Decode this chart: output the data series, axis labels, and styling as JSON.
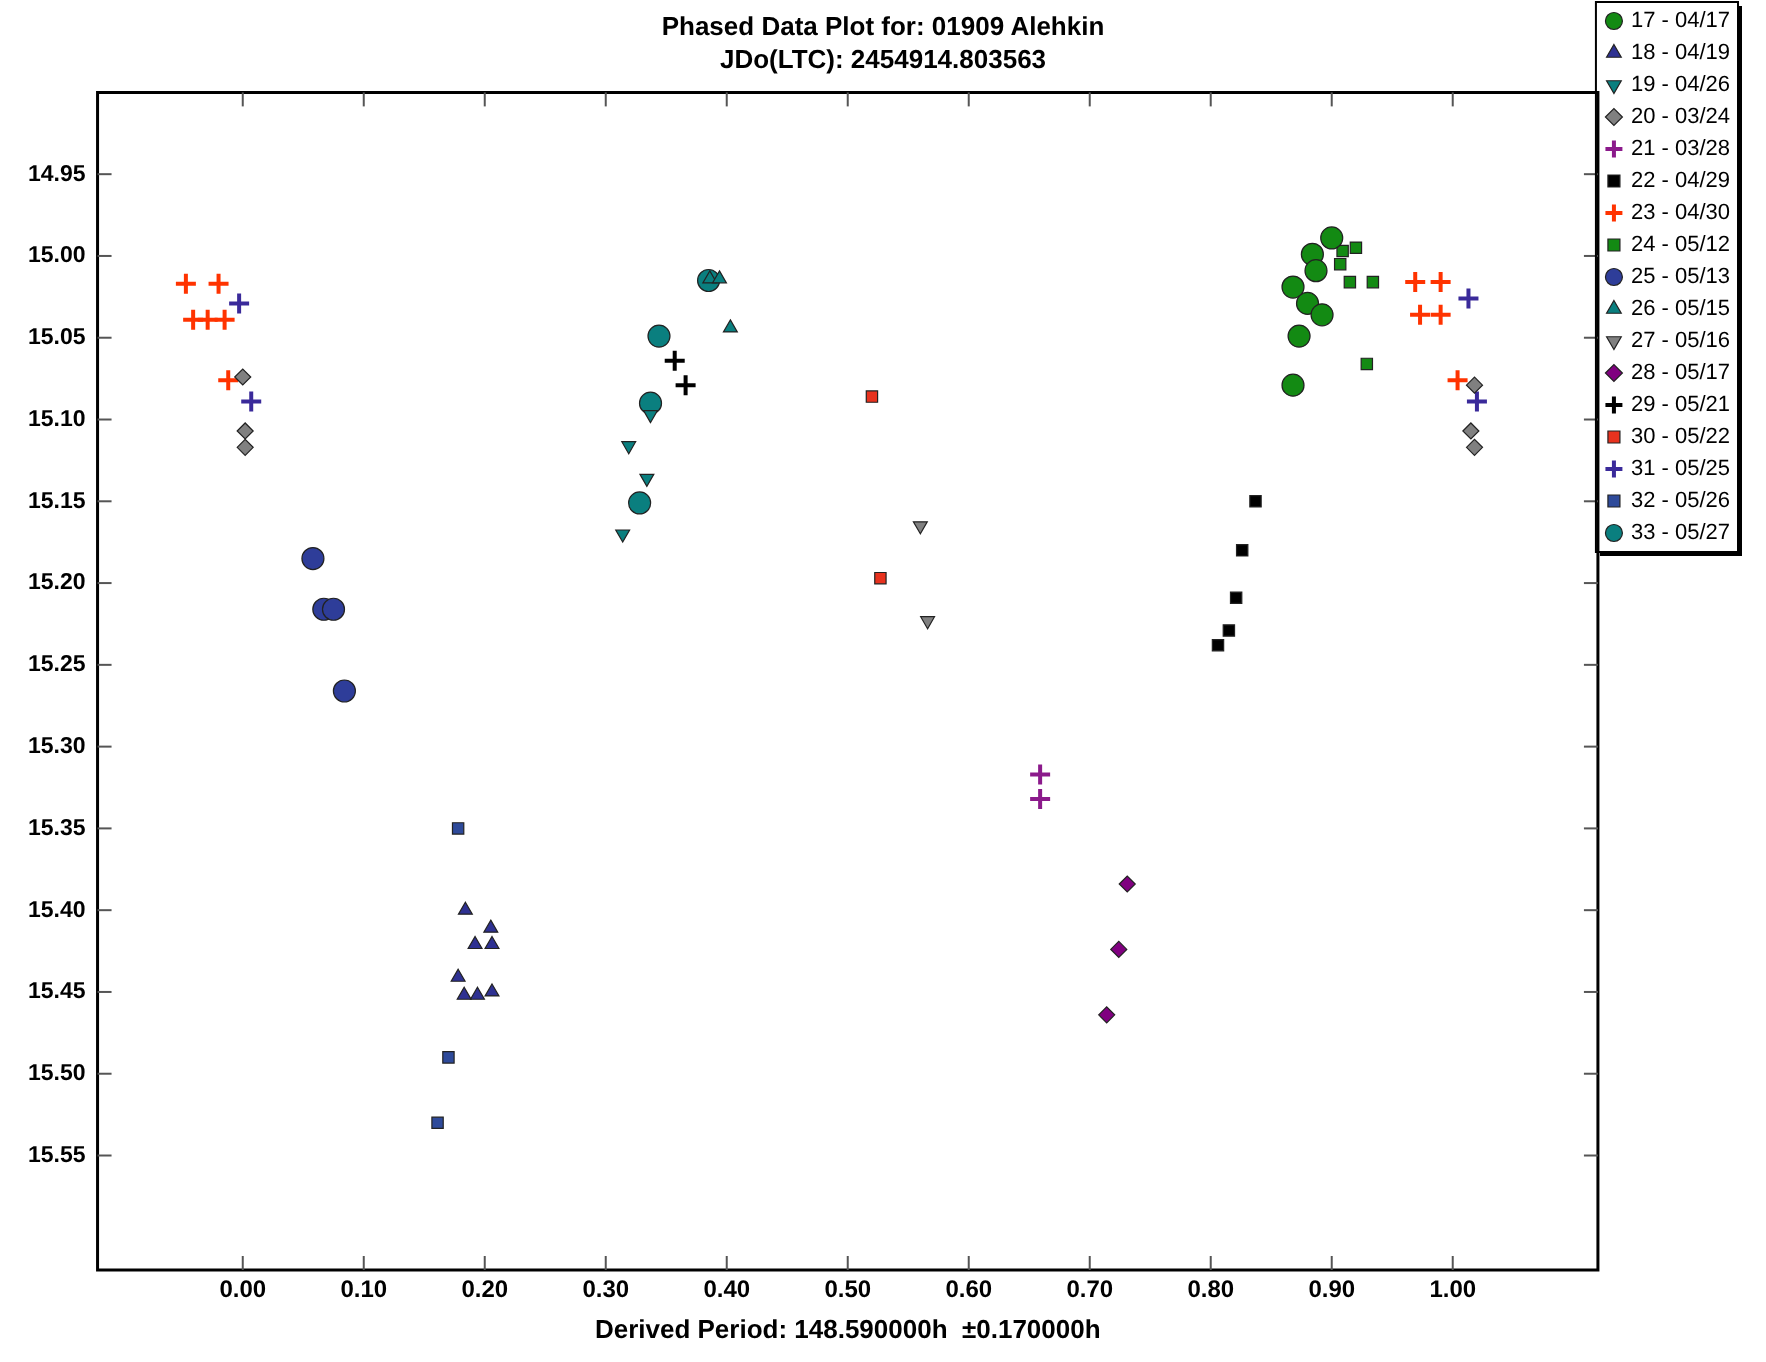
{
  "chart_data": {
    "type": "scatter",
    "title": "Phased Data Plot for: 01909 Alehkin",
    "subtitle": "JDo(LTC): 2454914.803563",
    "xlabel": "Derived Period: 148.590000h  ±0.170000h",
    "xlim": [
      -0.12,
      1.12
    ],
    "ylim": [
      15.62,
      14.9
    ],
    "xticks": [
      {
        "value": 0,
        "label": "0.00"
      },
      {
        "value": 0.1,
        "label": "0.10"
      },
      {
        "value": 0.2,
        "label": "0.20"
      },
      {
        "value": 0.3,
        "label": "0.30"
      },
      {
        "value": 0.4,
        "label": "0.40"
      },
      {
        "value": 0.5,
        "label": "0.50"
      },
      {
        "value": 0.6,
        "label": "0.60"
      },
      {
        "value": 0.7,
        "label": "0.70"
      },
      {
        "value": 0.8,
        "label": "0.80"
      },
      {
        "value": 0.9,
        "label": "0.90"
      },
      {
        "value": 1,
        "label": "1.00"
      }
    ],
    "yticks": [
      {
        "value": 14.95,
        "label": "14.95"
      },
      {
        "value": 15,
        "label": "15.00"
      },
      {
        "value": 15.05,
        "label": "15.05"
      },
      {
        "value": 15.1,
        "label": "15.10"
      },
      {
        "value": 15.15,
        "label": "15.15"
      },
      {
        "value": 15.2,
        "label": "15.20"
      },
      {
        "value": 15.25,
        "label": "15.25"
      },
      {
        "value": 15.3,
        "label": "15.30"
      },
      {
        "value": 15.35,
        "label": "15.35"
      },
      {
        "value": 15.4,
        "label": "15.40"
      },
      {
        "value": 15.45,
        "label": "15.45"
      },
      {
        "value": 15.5,
        "label": "15.50"
      },
      {
        "value": 15.55,
        "label": "15.55"
      }
    ],
    "grid": false,
    "legend": "right",
    "series": [
      {
        "name": "17 - 04/17",
        "color": "#138a13",
        "marker": "circle",
        "x": [
          0.9,
          0.884,
          0.887,
          0.868,
          0.88,
          0.892,
          0.873,
          0.868
        ],
        "values": [
          14.989,
          14.999,
          15.009,
          15.019,
          15.029,
          15.036,
          15.049,
          15.079
        ]
      },
      {
        "name": "18 - 04/19",
        "color": "#2e3192",
        "marker": "triangle",
        "x": [
          0.184,
          0.205,
          0.192,
          0.206,
          0.178,
          0.183,
          0.194,
          0.206
        ],
        "values": [
          15.4,
          15.411,
          15.421,
          15.421,
          15.441,
          15.452,
          15.452,
          15.45
        ]
      },
      {
        "name": "19 - 04/26",
        "color": "#0a7f7f",
        "marker": "triangle_down",
        "x": [
          0.337,
          0.319,
          0.334,
          0.314
        ],
        "values": [
          15.097,
          15.116,
          15.136,
          15.17
        ]
      },
      {
        "name": "20 - 03/24",
        "color": "#808080",
        "marker": "diamond",
        "x": [
          0.0,
          0.002,
          0.002,
          1.018,
          1.015,
          1.018
        ],
        "values": [
          15.074,
          15.107,
          15.117,
          15.079,
          15.107,
          15.117
        ]
      },
      {
        "name": "21 - 03/28",
        "color": "#8b1a8b",
        "marker": "cross",
        "x": [
          0.659,
          0.659
        ],
        "values": [
          15.317,
          15.332
        ]
      },
      {
        "name": "22 - 04/29",
        "color": "#000000",
        "marker": "square",
        "x": [
          0.837,
          0.826,
          0.821,
          0.815,
          0.806
        ],
        "values": [
          15.15,
          15.18,
          15.209,
          15.229,
          15.238
        ]
      },
      {
        "name": "23 - 04/30",
        "color": "#ff3300",
        "marker": "cross",
        "x": [
          -0.047,
          -0.02,
          -0.041,
          -0.029,
          -0.015,
          -0.012,
          0.969,
          0.99,
          0.973,
          0.99,
          1.004
        ],
        "values": [
          15.017,
          15.017,
          15.039,
          15.039,
          15.039,
          15.076,
          15.016,
          15.016,
          15.036,
          15.036,
          15.076
        ]
      },
      {
        "name": "24 - 05/12",
        "color": "#138a13",
        "marker": "square",
        "x": [
          0.909,
          0.92,
          0.907,
          0.915,
          0.934,
          0.929
        ],
        "values": [
          14.997,
          14.995,
          15.005,
          15.016,
          15.016,
          15.066
        ]
      },
      {
        "name": "25 - 05/13",
        "color": "#2e3d99",
        "marker": "circle",
        "x": [
          0.058,
          0.067,
          0.075,
          0.084
        ],
        "values": [
          15.185,
          15.216,
          15.216,
          15.266
        ]
      },
      {
        "name": "26 - 05/15",
        "color": "#0a7f7f",
        "marker": "triangle",
        "x": [
          0.386,
          0.394,
          0.403
        ],
        "values": [
          15.014,
          15.014,
          15.044
        ]
      },
      {
        "name": "27 - 05/16",
        "color": "#808080",
        "marker": "triangle_down",
        "x": [
          0.56,
          0.566
        ],
        "values": [
          15.165,
          15.223
        ]
      },
      {
        "name": "28 - 05/17",
        "color": "#800080",
        "marker": "diamond",
        "x": [
          0.731,
          0.724,
          0.714
        ],
        "values": [
          15.384,
          15.424,
          15.464
        ]
      },
      {
        "name": "29 - 05/21",
        "color": "#000000",
        "marker": "cross",
        "x": [
          0.357,
          0.366
        ],
        "values": [
          15.064,
          15.079
        ]
      },
      {
        "name": "30 - 05/22",
        "color": "#e8321e",
        "marker": "square",
        "x": [
          0.52,
          0.527
        ],
        "values": [
          15.086,
          15.197
        ]
      },
      {
        "name": "31 - 05/25",
        "color": "#3a2a9a",
        "marker": "cross",
        "x": [
          -0.003,
          0.007,
          1.013,
          1.02
        ],
        "values": [
          15.029,
          15.089,
          15.026,
          15.089
        ]
      },
      {
        "name": "32 - 05/26",
        "color": "#2e4a9a",
        "marker": "square",
        "x": [
          0.178,
          0.17,
          0.161
        ],
        "values": [
          15.35,
          15.49,
          15.53
        ]
      },
      {
        "name": "33 - 05/27",
        "color": "#0a7f7f",
        "marker": "circle",
        "x": [
          0.385,
          0.344,
          0.337,
          0.328
        ],
        "values": [
          15.015,
          15.049,
          15.09,
          15.151
        ]
      }
    ]
  }
}
